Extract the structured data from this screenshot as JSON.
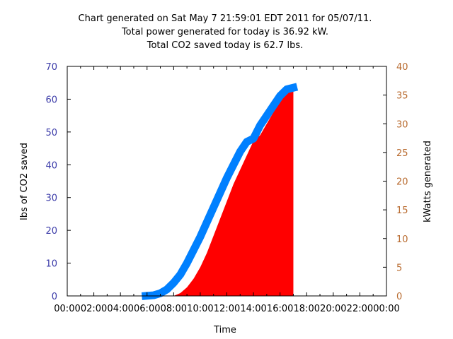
{
  "chart_data": {
    "type": "area",
    "title_lines": [
      "Chart generated on Sat May  7 21:59:01 EDT 2011 for 05/07/11.",
      "Total power generated for today is 36.92 kW.",
      "Total CO2 saved today is 62.7 lbs."
    ],
    "xlabel": "Time",
    "ylabel_left": "lbs of CO2 saved",
    "ylabel_right": "kWatts generated",
    "x_ticks": [
      "00:00",
      "02:00",
      "04:00",
      "06:00",
      "08:00",
      "10:00",
      "12:00",
      "14:00",
      "16:00",
      "18:00",
      "20:00",
      "22:00",
      "00:00"
    ],
    "xlim_hours": [
      0,
      24
    ],
    "ylim_left": [
      0,
      70
    ],
    "ylim_right": [
      0,
      40
    ],
    "left_ticks": [
      0,
      10,
      20,
      30,
      40,
      50,
      60,
      70
    ],
    "right_ticks": [
      0,
      5,
      10,
      15,
      20,
      25,
      30,
      35,
      40
    ],
    "grid": false,
    "legend": "none",
    "series": [
      {
        "type": "area",
        "axis": "right",
        "color": "#ff0000",
        "x_hours": [
          8.0,
          8.5,
          9.0,
          9.5,
          10.0,
          10.5,
          11.0,
          11.5,
          12.0,
          12.5,
          13.0,
          13.5,
          14.0,
          14.5,
          15.0,
          15.5,
          16.0,
          16.5,
          17.0
        ],
        "values": [
          0.0,
          0.5,
          1.5,
          3.0,
          5.0,
          7.5,
          10.5,
          13.5,
          16.5,
          19.5,
          22.0,
          24.5,
          27.0,
          28.0,
          30.0,
          32.0,
          34.0,
          35.5,
          35.8
        ]
      },
      {
        "type": "line",
        "axis": "left",
        "color": "#0080ff",
        "x_hours": [
          5.9,
          6.5,
          7.0,
          7.5,
          8.0,
          8.5,
          9.0,
          9.5,
          10.0,
          10.5,
          11.0,
          11.5,
          12.0,
          12.5,
          13.0,
          13.5,
          14.0,
          14.5,
          15.0,
          15.5,
          16.0,
          16.5,
          17.0
        ],
        "values": [
          0.0,
          0.2,
          0.8,
          2.0,
          4.0,
          6.5,
          10.0,
          14.0,
          18.0,
          22.5,
          27.0,
          31.5,
          36.0,
          40.0,
          44.0,
          47.0,
          48.0,
          52.0,
          55.0,
          58.0,
          61.0,
          63.0,
          63.5
        ]
      }
    ]
  },
  "colors": {
    "left_axis": "#3a3aa8",
    "right_axis": "#b86a2e",
    "text": "#000000"
  }
}
